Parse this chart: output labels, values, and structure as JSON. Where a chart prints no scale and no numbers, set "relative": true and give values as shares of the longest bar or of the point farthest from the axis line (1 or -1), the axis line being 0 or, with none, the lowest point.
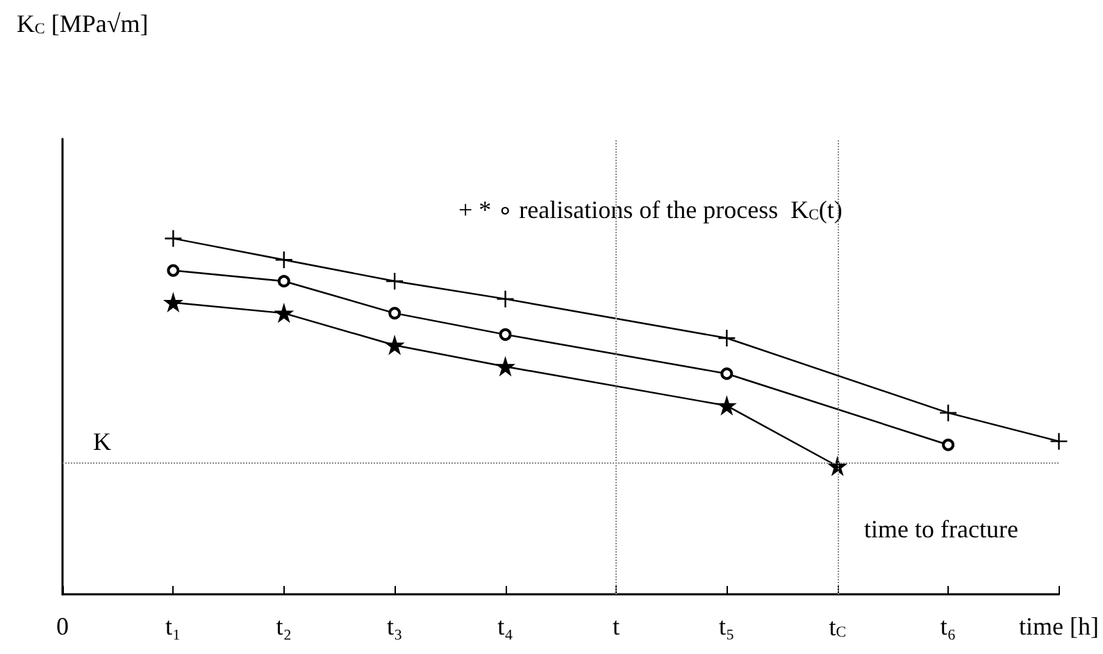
{
  "chart_data": {
    "type": "line",
    "relative": true,
    "annotations": [
      "K$_{C}$ [MPa√m]",
      "+ * ∘ realisations of the process  K$_{C}$(t)",
      "time to fracture"
    ],
    "categories": [
      "0",
      "t₁",
      "t₂",
      "t₃",
      "t₄",
      "t",
      "t₅",
      "t$_{C}$",
      "t₆",
      "time [h]"
    ],
    "series": [
      {
        "color": "#000000",
        "marker": "cross",
        "values": [
          null,
          1,
          0.94,
          0.88,
          0.83,
          null,
          0.72,
          null,
          0.51,
          0.43
        ]
      },
      {
        "color": "#000000",
        "marker": "circle",
        "values": [
          null,
          0.91,
          0.88,
          0.79,
          0.73,
          null,
          0.62,
          null,
          0.42,
          null
        ]
      },
      {
        "color": "#000000",
        "marker": "star",
        "values": [
          null,
          0.82,
          0.79,
          0.7,
          0.64,
          null,
          0.53,
          0.36,
          null,
          null
        ]
      }
    ],
    "ref_lines": [
      {
        "axis": "y",
        "value": 0.37,
        "label": "K",
        "color": "#888888",
        "line_style": "dotted"
      },
      {
        "axis": "x",
        "value": "t",
        "color": "#888888",
        "line_style": "dotted"
      },
      {
        "axis": "x",
        "value": "t$_{C}$",
        "color": "#888888",
        "line_style": "dotted"
      }
    ],
    "line_style": "solid",
    "grid": false
  }
}
